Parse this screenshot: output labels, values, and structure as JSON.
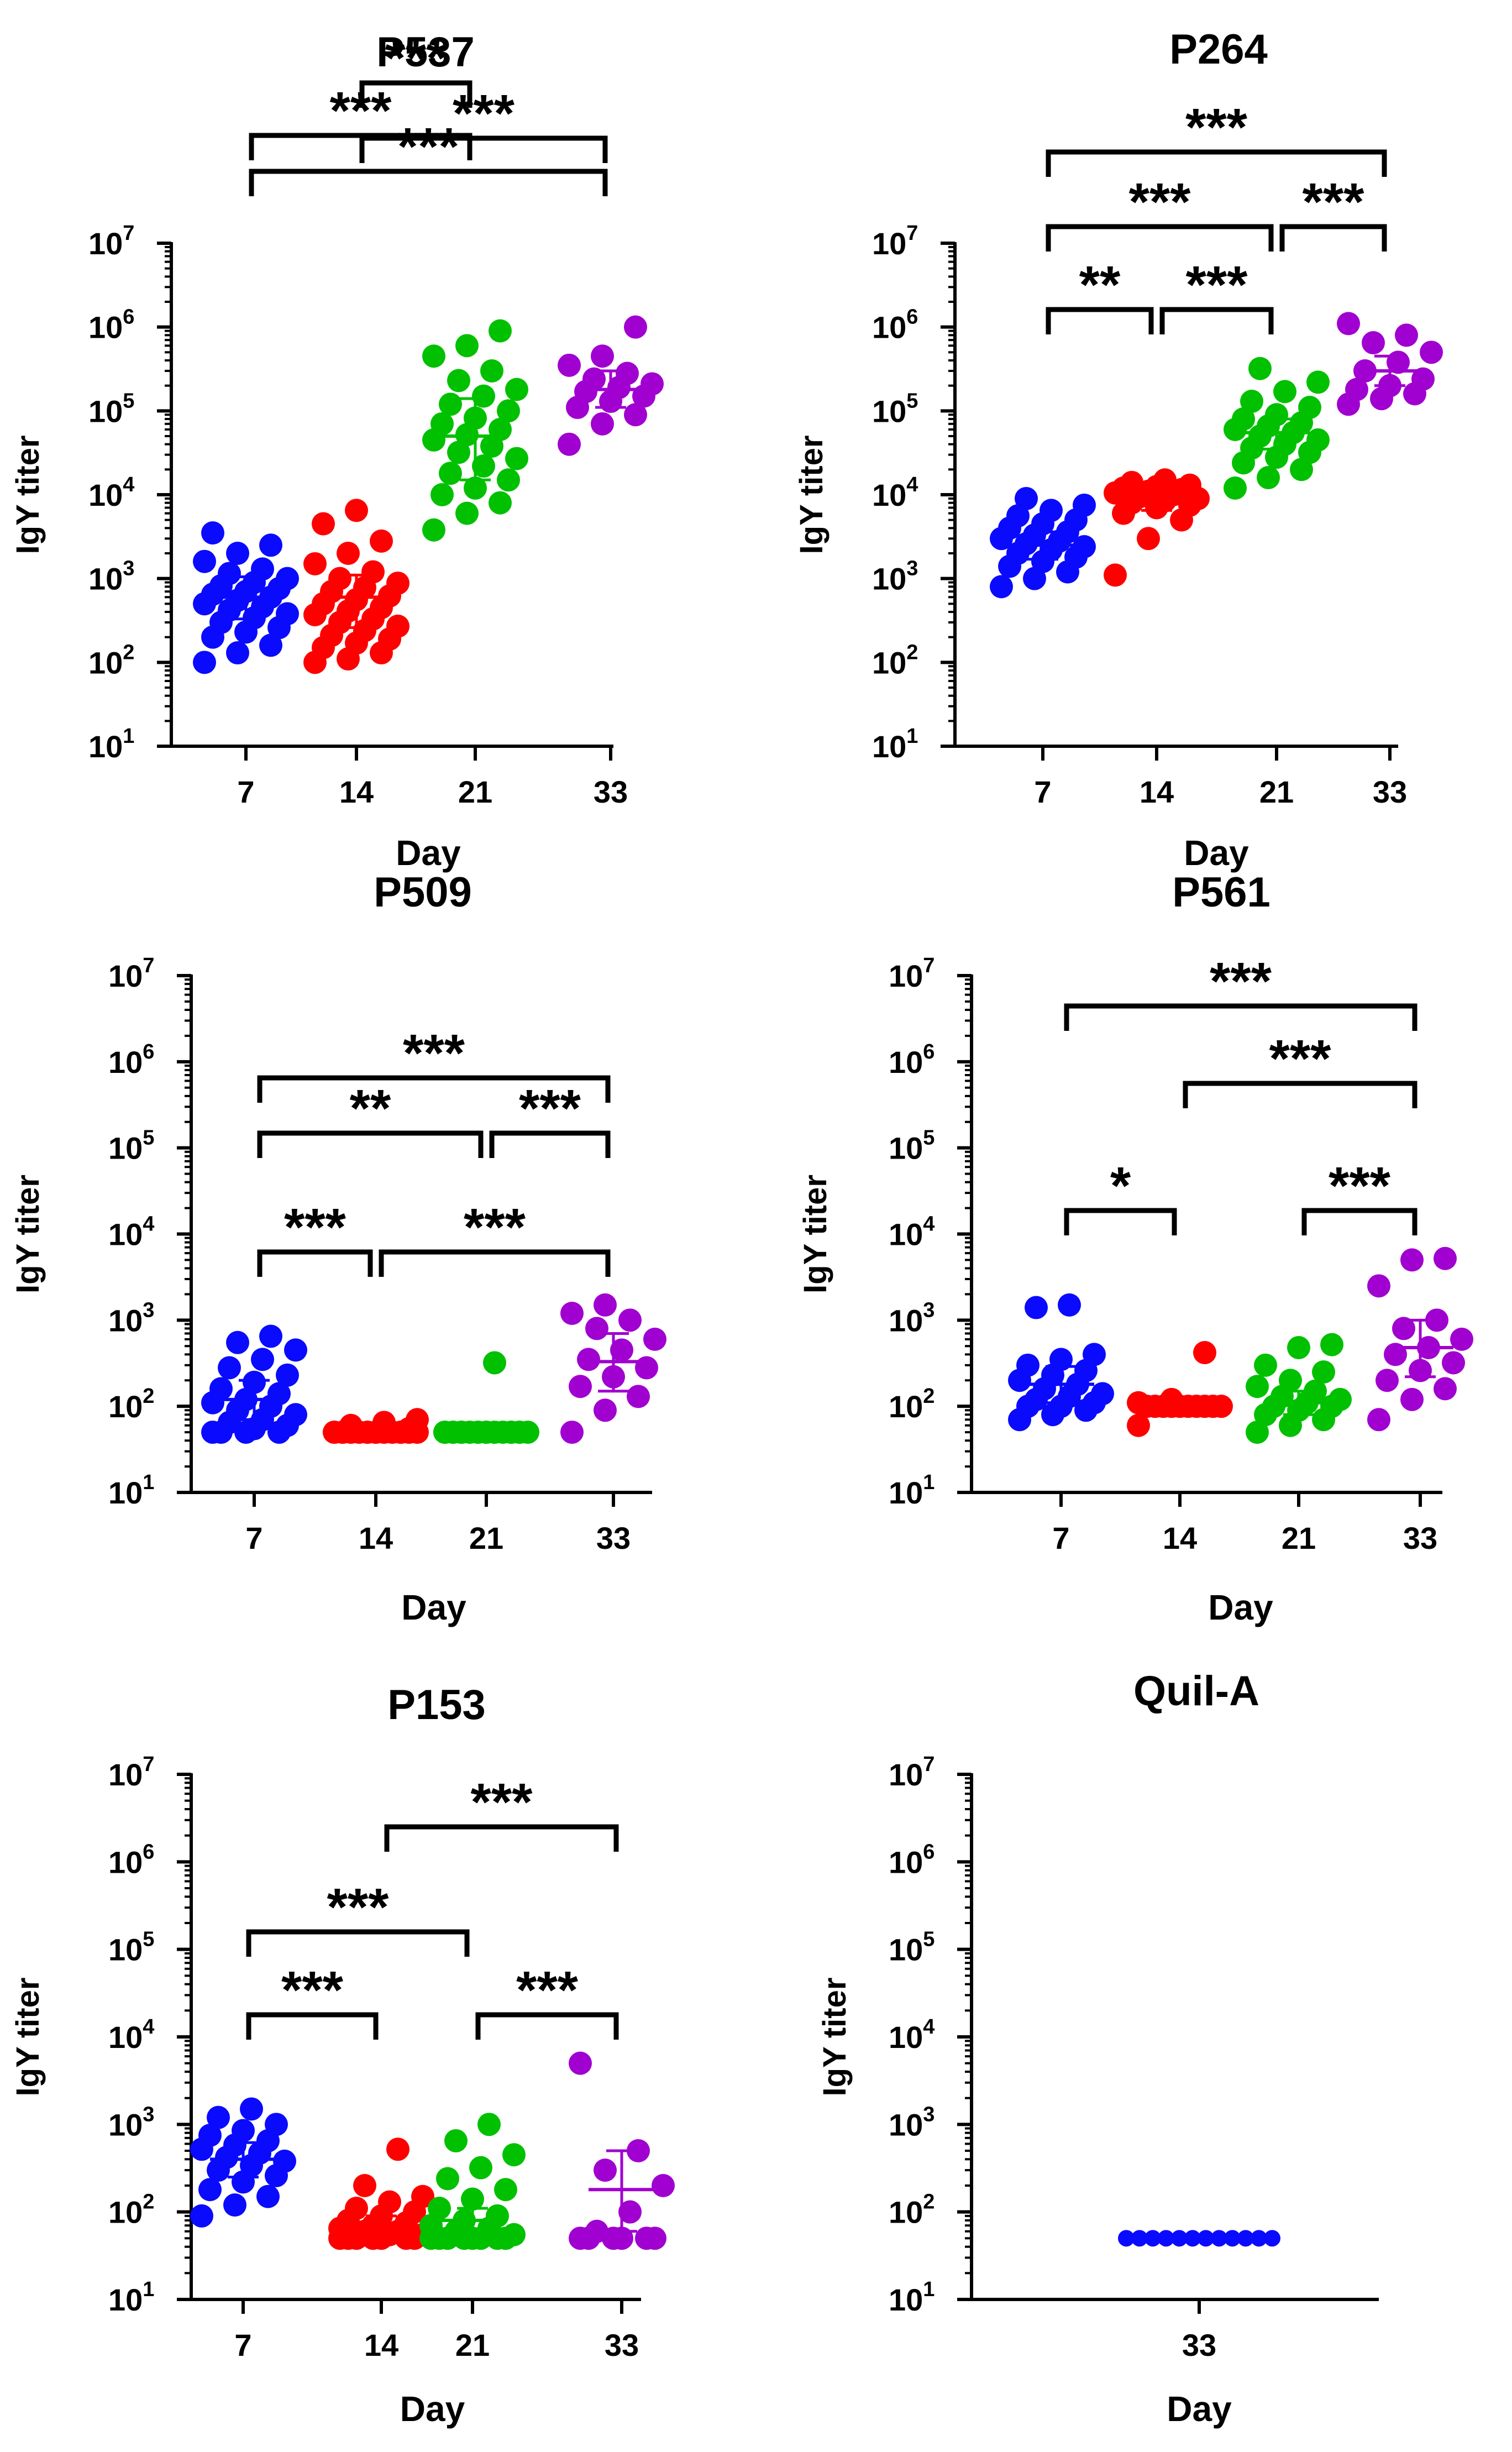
{
  "chart_data": [
    {
      "type": "scatter",
      "title": "P537",
      "xlabel": "Day",
      "ylabel": "IgY titer",
      "yscale": "log10",
      "ylim": [
        10,
        10000000
      ],
      "y_tick_labels": [
        "10",
        "10",
        "10",
        "10",
        "10",
        "10",
        "10"
      ],
      "y_tick_exponents": [
        "1",
        "2",
        "3",
        "4",
        "5",
        "6",
        "7"
      ],
      "categories": [
        "7",
        "14",
        "21",
        "33"
      ],
      "series": [
        {
          "name": "7",
          "color": "#0a0aff",
          "center": 600,
          "sd_low": 330,
          "sd_high": 1050,
          "values": [
            100,
            130,
            160,
            200,
            230,
            260,
            300,
            340,
            380,
            420,
            460,
            500,
            550,
            600,
            650,
            700,
            760,
            820,
            900,
            1000,
            1150,
            1300,
            1600,
            2000,
            2500,
            3500
          ]
        },
        {
          "name": "14",
          "color": "#ff0000",
          "center": 600,
          "sd_low": 260,
          "sd_high": 1100,
          "values": [
            100,
            110,
            130,
            150,
            170,
            190,
            210,
            240,
            270,
            300,
            330,
            370,
            410,
            450,
            500,
            560,
            620,
            700,
            780,
            880,
            1000,
            1200,
            1500,
            2000,
            2800,
            4500,
            6500
          ]
        },
        {
          "name": "21",
          "color": "#00c000",
          "center": 50000,
          "sd_low": 15000,
          "sd_high": 140000,
          "values": [
            3800,
            6000,
            8000,
            10000,
            12000,
            15000,
            18000,
            22000,
            27000,
            32000,
            38000,
            45000,
            52000,
            60000,
            70000,
            82000,
            100000,
            120000,
            150000,
            180000,
            230000,
            300000,
            450000,
            600000,
            900000
          ]
        },
        {
          "name": "33",
          "color": "#a000d0",
          "center": 180000,
          "sd_low": 110000,
          "sd_high": 300000,
          "values": [
            40000,
            70000,
            90000,
            110000,
            130000,
            150000,
            170000,
            190000,
            210000,
            240000,
            280000,
            350000,
            450000,
            1000000
          ]
        }
      ],
      "significance": [
        {
          "from": "7",
          "to": "33",
          "label": "***"
        },
        {
          "from": "14",
          "to": "33",
          "label": "***"
        },
        {
          "from": "7",
          "to": "21",
          "label": "***"
        },
        {
          "from": "14",
          "to": "21",
          "label": "***"
        }
      ]
    },
    {
      "type": "scatter",
      "title": "P264",
      "xlabel": "Day",
      "ylabel": "IgY titer",
      "yscale": "log10",
      "ylim": [
        10,
        10000000
      ],
      "y_tick_labels": [
        "10",
        "10",
        "10",
        "10",
        "10",
        "10",
        "10"
      ],
      "y_tick_exponents": [
        "1",
        "2",
        "3",
        "4",
        "5",
        "6",
        "7"
      ],
      "categories": [
        "7",
        "14",
        "21",
        "33"
      ],
      "series": [
        {
          "name": "7",
          "color": "#0a0aff",
          "center": 2500,
          "sd_low": 1700,
          "sd_high": 3600,
          "values": [
            800,
            1000,
            1200,
            1400,
            1600,
            1800,
            2000,
            2200,
            2400,
            2600,
            2800,
            3000,
            3300,
            3600,
            4000,
            4500,
            5000,
            5600,
            6500,
            7500,
            9000
          ]
        },
        {
          "name": "14",
          "color": "#ff0000",
          "center": 9000,
          "sd_low": 6500,
          "sd_high": 11500,
          "values": [
            1100,
            3000,
            5000,
            6000,
            7000,
            7500,
            8000,
            8500,
            9000,
            9500,
            10000,
            10500,
            11000,
            11500,
            12000,
            12500,
            13000,
            14000,
            15000
          ]
        },
        {
          "name": "21",
          "color": "#00c000",
          "center": 55000,
          "sd_low": 35000,
          "sd_high": 80000,
          "values": [
            12000,
            16000,
            20000,
            24000,
            28000,
            32000,
            36000,
            40000,
            45000,
            50000,
            55000,
            60000,
            66000,
            72000,
            80000,
            90000,
            110000,
            130000,
            170000,
            220000,
            320000
          ]
        },
        {
          "name": "33",
          "color": "#a000d0",
          "center": 300000,
          "sd_low": 200000,
          "sd_high": 450000,
          "values": [
            120000,
            140000,
            160000,
            180000,
            200000,
            240000,
            300000,
            380000,
            500000,
            650000,
            800000,
            1100000
          ]
        }
      ],
      "significance": [
        {
          "from": "7",
          "to": "33",
          "label": "***"
        },
        {
          "from": "7",
          "to": "21",
          "label": "***"
        },
        {
          "from": "21",
          "to": "33",
          "label": "***"
        },
        {
          "from": "7",
          "to": "14",
          "label": "**"
        },
        {
          "from": "14",
          "to": "21",
          "label": "***"
        }
      ]
    },
    {
      "type": "scatter",
      "title": "P509",
      "xlabel": "Day",
      "ylabel": "IgY titer",
      "yscale": "log10",
      "ylim": [
        10,
        10000000
      ],
      "y_tick_labels": [
        "10",
        "10",
        "10",
        "10",
        "10",
        "10",
        "10"
      ],
      "y_tick_exponents": [
        "1",
        "2",
        "3",
        "4",
        "5",
        "6",
        "7"
      ],
      "categories": [
        "7",
        "14",
        "21",
        "33"
      ],
      "series": [
        {
          "name": "7",
          "color": "#0a0aff",
          "center": 120,
          "sd_low": 70,
          "sd_high": 200,
          "values": [
            50,
            50,
            50,
            50,
            55,
            60,
            65,
            70,
            80,
            90,
            100,
            110,
            120,
            140,
            160,
            190,
            230,
            280,
            350,
            450,
            550,
            650
          ]
        },
        {
          "name": "14",
          "color": "#ff0000",
          "center": 50,
          "sd_low": 50,
          "sd_high": 50,
          "values": [
            50,
            50,
            50,
            50,
            50,
            50,
            50,
            50,
            50,
            50,
            50,
            50,
            50,
            50,
            50,
            50,
            55,
            60,
            65,
            70
          ]
        },
        {
          "name": "21",
          "color": "#00c000",
          "center": 50,
          "sd_low": 50,
          "sd_high": 50,
          "values": [
            50,
            50,
            50,
            50,
            50,
            50,
            50,
            50,
            50,
            50,
            50,
            50,
            50,
            50,
            50,
            50,
            50,
            50,
            320
          ]
        },
        {
          "name": "33",
          "color": "#a000d0",
          "center": 330,
          "sd_low": 150,
          "sd_high": 700,
          "values": [
            50,
            90,
            130,
            170,
            220,
            280,
            350,
            450,
            600,
            800,
            1000,
            1200,
            1500
          ]
        }
      ],
      "significance": [
        {
          "from": "7",
          "to": "33",
          "label": "***"
        },
        {
          "from": "7",
          "to": "21",
          "label": "**"
        },
        {
          "from": "21",
          "to": "33",
          "label": "***"
        },
        {
          "from": "7",
          "to": "14",
          "label": "***"
        },
        {
          "from": "14",
          "to": "33",
          "label": "***"
        }
      ]
    },
    {
      "type": "scatter",
      "title": "P561",
      "xlabel": "Day",
      "ylabel": "IgY titer",
      "yscale": "log10",
      "ylim": [
        10,
        10000000
      ],
      "y_tick_labels": [
        "10",
        "10",
        "10",
        "10",
        "10",
        "10",
        "10"
      ],
      "y_tick_exponents": [
        "1",
        "2",
        "3",
        "4",
        "5",
        "6",
        "7"
      ],
      "categories": [
        "7",
        "14",
        "21",
        "33"
      ],
      "series": [
        {
          "name": "7",
          "color": "#0a0aff",
          "center": 180,
          "sd_low": 110,
          "sd_high": 290,
          "values": [
            70,
            80,
            90,
            100,
            100,
            110,
            120,
            130,
            140,
            160,
            180,
            200,
            230,
            260,
            300,
            350,
            400,
            1400,
            1500
          ]
        },
        {
          "name": "14",
          "color": "#ff0000",
          "center": 100,
          "sd_low": 80,
          "sd_high": 120,
          "values": [
            60,
            100,
            100,
            100,
            100,
            100,
            100,
            100,
            100,
            100,
            100,
            110,
            120,
            420
          ]
        },
        {
          "name": "21",
          "color": "#00c000",
          "center": 110,
          "sd_low": 80,
          "sd_high": 150,
          "values": [
            50,
            60,
            70,
            80,
            90,
            100,
            100,
            110,
            120,
            130,
            150,
            170,
            200,
            250,
            300,
            480,
            520
          ]
        },
        {
          "name": "33",
          "color": "#a000d0",
          "center": 480,
          "sd_low": 220,
          "sd_high": 1000,
          "values": [
            70,
            120,
            160,
            200,
            260,
            320,
            400,
            480,
            600,
            800,
            1000,
            2500,
            5000,
            5200
          ]
        }
      ],
      "significance": [
        {
          "from": "7",
          "to": "33",
          "label": "***"
        },
        {
          "from": "14",
          "to": "33",
          "label": "***"
        },
        {
          "from": "7",
          "to": "14",
          "label": "*"
        },
        {
          "from": "21",
          "to": "33",
          "label": "***"
        }
      ]
    },
    {
      "type": "scatter",
      "title": "P153",
      "xlabel": "Day",
      "ylabel": "IgY titer",
      "yscale": "log10",
      "ylim": [
        10,
        10000000
      ],
      "y_tick_labels": [
        "10",
        "10",
        "10",
        "10",
        "10",
        "10",
        "10"
      ],
      "y_tick_exponents": [
        "1",
        "2",
        "3",
        "4",
        "5",
        "6",
        "7"
      ],
      "categories": [
        "7",
        "14",
        "21",
        "33"
      ],
      "series": [
        {
          "name": "7",
          "color": "#0a0aff",
          "center": 400,
          "sd_low": 250,
          "sd_high": 620,
          "values": [
            90,
            120,
            150,
            180,
            220,
            260,
            300,
            340,
            380,
            420,
            470,
            520,
            580,
            650,
            750,
            850,
            1000,
            1200,
            1500
          ]
        },
        {
          "name": "14",
          "color": "#ff0000",
          "center": 60,
          "sd_low": 50,
          "sd_high": 90,
          "values": [
            50,
            50,
            50,
            50,
            50,
            50,
            50,
            55,
            55,
            60,
            60,
            65,
            70,
            75,
            80,
            90,
            100,
            110,
            130,
            150,
            200,
            520
          ]
        },
        {
          "name": "21",
          "color": "#00c000",
          "center": 80,
          "sd_low": 50,
          "sd_high": 110,
          "values": [
            50,
            50,
            50,
            50,
            50,
            50,
            50,
            50,
            55,
            60,
            65,
            70,
            80,
            90,
            110,
            140,
            180,
            240,
            320,
            450,
            650,
            1000
          ]
        },
        {
          "name": "33",
          "color": "#a000d0",
          "center": 180,
          "sd_low": 60,
          "sd_high": 500,
          "values": [
            50,
            50,
            50,
            50,
            50,
            50,
            60,
            100,
            200,
            300,
            500,
            5000
          ]
        }
      ],
      "significance": [
        {
          "from": "14",
          "to": "33",
          "label": "***"
        },
        {
          "from": "7",
          "to": "21",
          "label": "***"
        },
        {
          "from": "7",
          "to": "14",
          "label": "***"
        },
        {
          "from": "21",
          "to": "33",
          "label": "***"
        }
      ]
    },
    {
      "type": "scatter",
      "title": "Quil-A",
      "xlabel": "Day",
      "ylabel": "IgY titer",
      "yscale": "log10",
      "ylim": [
        10,
        10000000
      ],
      "y_tick_labels": [
        "10",
        "10",
        "10",
        "10",
        "10",
        "10",
        "10"
      ],
      "y_tick_exponents": [
        "1",
        "2",
        "3",
        "4",
        "5",
        "6",
        "7"
      ],
      "categories": [
        "33"
      ],
      "series": [
        {
          "name": "33",
          "color": "#0a0aff",
          "center": 50,
          "sd_low": 50,
          "sd_high": 50,
          "values": [
            50,
            50,
            50,
            50,
            50,
            50,
            50,
            50,
            50,
            50,
            50,
            50
          ]
        }
      ],
      "significance": []
    }
  ]
}
